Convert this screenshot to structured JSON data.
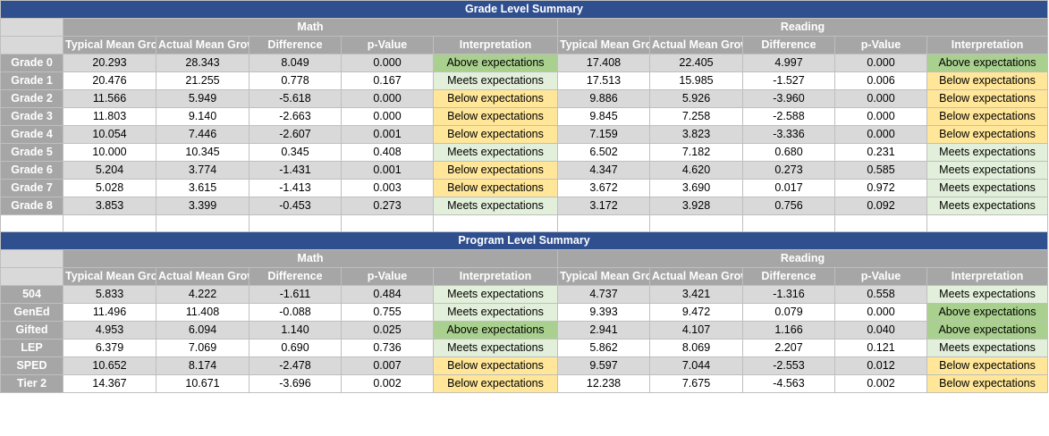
{
  "grade_summary": {
    "title": "Grade Level Summary",
    "groups": [
      "Math",
      "Reading"
    ],
    "columns": [
      "Typical Mean Growth",
      "Actual Mean Growth",
      "Difference",
      "p-Value",
      "Interpretation"
    ],
    "rows": [
      {
        "label": "Grade 0",
        "math": [
          "20.293",
          "28.343",
          "8.049",
          "0.000",
          "Above expectations"
        ],
        "reading": [
          "17.408",
          "22.405",
          "4.997",
          "0.000",
          "Above expectations"
        ]
      },
      {
        "label": "Grade 1",
        "math": [
          "20.476",
          "21.255",
          "0.778",
          "0.167",
          "Meets expectations"
        ],
        "reading": [
          "17.513",
          "15.985",
          "-1.527",
          "0.006",
          "Below expectations"
        ]
      },
      {
        "label": "Grade 2",
        "math": [
          "11.566",
          "5.949",
          "-5.618",
          "0.000",
          "Below expectations"
        ],
        "reading": [
          "9.886",
          "5.926",
          "-3.960",
          "0.000",
          "Below expectations"
        ]
      },
      {
        "label": "Grade 3",
        "math": [
          "11.803",
          "9.140",
          "-2.663",
          "0.000",
          "Below expectations"
        ],
        "reading": [
          "9.845",
          "7.258",
          "-2.588",
          "0.000",
          "Below expectations"
        ]
      },
      {
        "label": "Grade 4",
        "math": [
          "10.054",
          "7.446",
          "-2.607",
          "0.001",
          "Below expectations"
        ],
        "reading": [
          "7.159",
          "3.823",
          "-3.336",
          "0.000",
          "Below expectations"
        ]
      },
      {
        "label": "Grade 5",
        "math": [
          "10.000",
          "10.345",
          "0.345",
          "0.408",
          "Meets expectations"
        ],
        "reading": [
          "6.502",
          "7.182",
          "0.680",
          "0.231",
          "Meets expectations"
        ]
      },
      {
        "label": "Grade 6",
        "math": [
          "5.204",
          "3.774",
          "-1.431",
          "0.001",
          "Below expectations"
        ],
        "reading": [
          "4.347",
          "4.620",
          "0.273",
          "0.585",
          "Meets expectations"
        ]
      },
      {
        "label": "Grade 7",
        "math": [
          "5.028",
          "3.615",
          "-1.413",
          "0.003",
          "Below expectations"
        ],
        "reading": [
          "3.672",
          "3.690",
          "0.017",
          "0.972",
          "Meets expectations"
        ]
      },
      {
        "label": "Grade 8",
        "math": [
          "3.853",
          "3.399",
          "-0.453",
          "0.273",
          "Meets expectations"
        ],
        "reading": [
          "3.172",
          "3.928",
          "0.756",
          "0.092",
          "Meets expectations"
        ]
      }
    ]
  },
  "program_summary": {
    "title": "Program Level Summary",
    "groups": [
      "Math",
      "Reading"
    ],
    "columns": [
      "Typical Mean Growth",
      "Actual Mean Growth",
      "Difference",
      "p-Value",
      "Interpretation"
    ],
    "rows": [
      {
        "label": "504",
        "math": [
          "5.833",
          "4.222",
          "-1.611",
          "0.484",
          "Meets expectations"
        ],
        "reading": [
          "4.737",
          "3.421",
          "-1.316",
          "0.558",
          "Meets expectations"
        ]
      },
      {
        "label": "GenEd",
        "math": [
          "11.496",
          "11.408",
          "-0.088",
          "0.755",
          "Meets expectations"
        ],
        "reading": [
          "9.393",
          "9.472",
          "0.079",
          "0.000",
          "Above expectations"
        ]
      },
      {
        "label": "Gifted",
        "math": [
          "4.953",
          "6.094",
          "1.140",
          "0.025",
          "Above expectations"
        ],
        "reading": [
          "2.941",
          "4.107",
          "1.166",
          "0.040",
          "Above expectations"
        ]
      },
      {
        "label": "LEP",
        "math": [
          "6.379",
          "7.069",
          "0.690",
          "0.736",
          "Meets expectations"
        ],
        "reading": [
          "5.862",
          "8.069",
          "2.207",
          "0.121",
          "Meets expectations"
        ]
      },
      {
        "label": "SPED",
        "math": [
          "10.652",
          "8.174",
          "-2.478",
          "0.007",
          "Below expectations"
        ],
        "reading": [
          "9.597",
          "7.044",
          "-2.553",
          "0.012",
          "Below expectations"
        ]
      },
      {
        "label": "Tier 2",
        "math": [
          "14.367",
          "10.671",
          "-3.696",
          "0.002",
          "Below expectations"
        ],
        "reading": [
          "12.238",
          "7.675",
          "-4.563",
          "0.002",
          "Below expectations"
        ]
      }
    ]
  },
  "colors": {
    "title_bg": "#2f4f8f",
    "header_bg": "#a6a6a6",
    "above": "#a9d08e",
    "meets": "#e2efda",
    "below": "#ffe699"
  }
}
